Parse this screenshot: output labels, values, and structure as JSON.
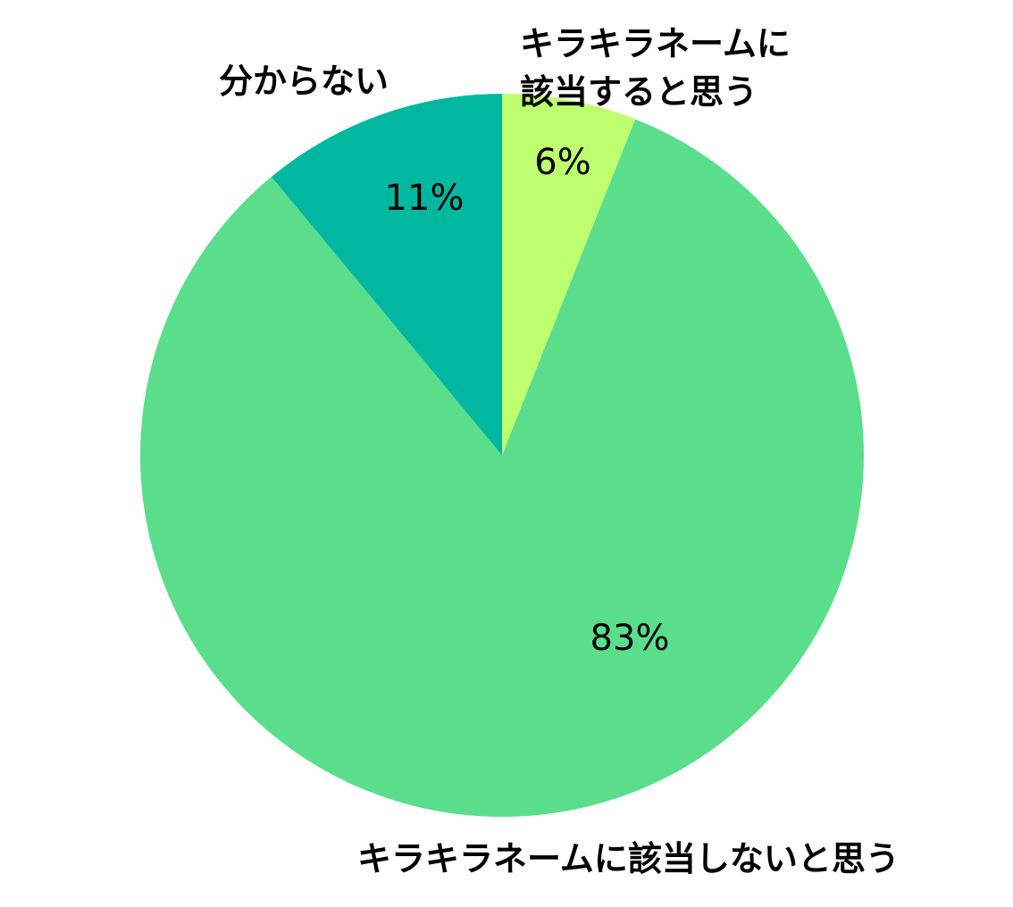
{
  "chart_data": {
    "type": "pie",
    "slices": [
      {
        "id": "kirakira-yes",
        "label_lines": [
          "キラキラネームに",
          "該当すると思う"
        ],
        "value": 6,
        "value_label": "6%",
        "color": "#beff6f"
      },
      {
        "id": "kirakira-no",
        "label_lines": [
          "キラキラネームに該当しないと思う"
        ],
        "value": 83,
        "value_label": "83%",
        "color": "#5ade8c"
      },
      {
        "id": "unknown",
        "label_lines": [
          "分からない"
        ],
        "value": 11,
        "value_label": "11%",
        "color": "#00b89f"
      }
    ],
    "start": "12 o'clock",
    "direction": "clockwise",
    "legend": "none"
  }
}
